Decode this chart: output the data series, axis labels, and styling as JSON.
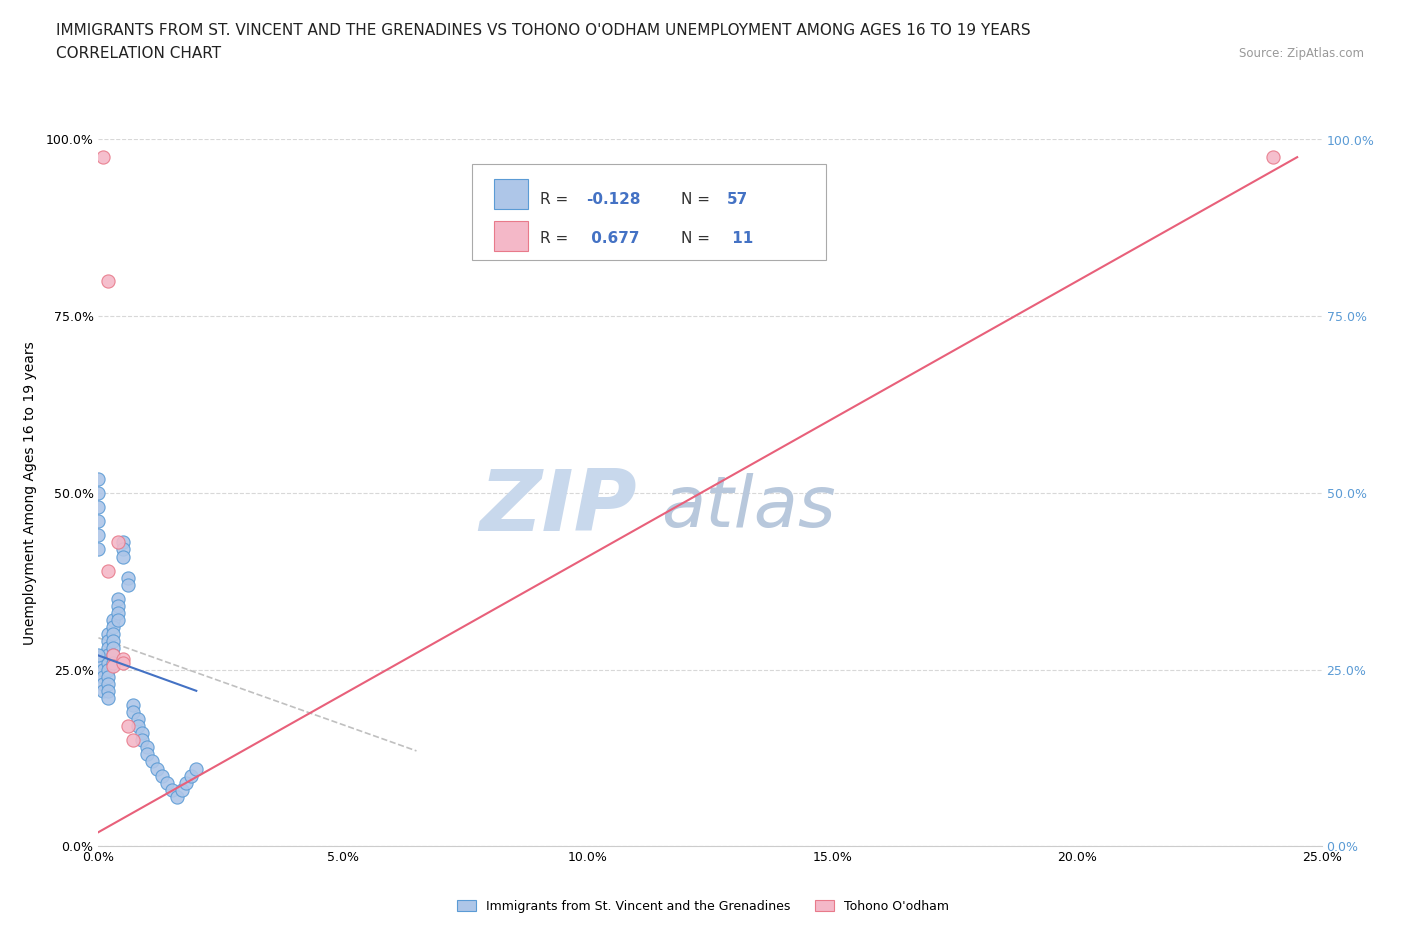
{
  "title_line1": "IMMIGRANTS FROM ST. VINCENT AND THE GRENADINES VS TOHONO O'ODHAM UNEMPLOYMENT AMONG AGES 16 TO 19 YEARS",
  "title_line2": "CORRELATION CHART",
  "source_text": "Source: ZipAtlas.com",
  "ylabel": "Unemployment Among Ages 16 to 19 years",
  "xlim": [
    0.0,
    0.25
  ],
  "ylim": [
    0.0,
    1.0
  ],
  "xticks": [
    0.0,
    0.05,
    0.1,
    0.15,
    0.2,
    0.25
  ],
  "yticks": [
    0.0,
    0.25,
    0.5,
    0.75,
    1.0
  ],
  "xticklabels": [
    "0.0%",
    "5.0%",
    "10.0%",
    "15.0%",
    "20.0%",
    "25.0%"
  ],
  "yticklabels": [
    "0.0%",
    "25.0%",
    "50.0%",
    "75.0%",
    "100.0%"
  ],
  "right_yticklabels": [
    "0.0%",
    "25.0%",
    "50.0%",
    "75.0%",
    "100.0%"
  ],
  "blue_scatter_x": [
    0.001,
    0.001,
    0.001,
    0.001,
    0.001,
    0.001,
    0.002,
    0.002,
    0.002,
    0.002,
    0.002,
    0.002,
    0.002,
    0.002,
    0.002,
    0.002,
    0.003,
    0.003,
    0.003,
    0.003,
    0.003,
    0.003,
    0.003,
    0.004,
    0.004,
    0.004,
    0.004,
    0.005,
    0.005,
    0.005,
    0.006,
    0.006,
    0.007,
    0.007,
    0.008,
    0.008,
    0.009,
    0.009,
    0.01,
    0.01,
    0.011,
    0.012,
    0.013,
    0.014,
    0.015,
    0.016,
    0.017,
    0.018,
    0.019,
    0.02,
    0.0,
    0.0,
    0.0,
    0.0,
    0.0,
    0.0,
    0.0
  ],
  "blue_scatter_y": [
    0.27,
    0.26,
    0.25,
    0.24,
    0.23,
    0.22,
    0.3,
    0.29,
    0.28,
    0.27,
    0.26,
    0.25,
    0.24,
    0.23,
    0.22,
    0.21,
    0.32,
    0.31,
    0.3,
    0.29,
    0.28,
    0.27,
    0.26,
    0.35,
    0.34,
    0.33,
    0.32,
    0.43,
    0.42,
    0.41,
    0.38,
    0.37,
    0.2,
    0.19,
    0.18,
    0.17,
    0.16,
    0.15,
    0.14,
    0.13,
    0.12,
    0.11,
    0.1,
    0.09,
    0.08,
    0.07,
    0.08,
    0.09,
    0.1,
    0.11,
    0.52,
    0.5,
    0.48,
    0.46,
    0.44,
    0.42,
    0.27
  ],
  "pink_scatter_x": [
    0.001,
    0.002,
    0.002,
    0.003,
    0.003,
    0.004,
    0.005,
    0.005,
    0.006,
    0.007,
    0.24
  ],
  "pink_scatter_y": [
    0.975,
    0.8,
    0.39,
    0.27,
    0.255,
    0.43,
    0.265,
    0.26,
    0.17,
    0.15,
    0.975
  ],
  "blue_line_x": [
    0.0,
    0.02
  ],
  "blue_line_y": [
    0.27,
    0.22
  ],
  "pink_line_x": [
    0.0,
    0.245
  ],
  "pink_line_y": [
    0.02,
    0.975
  ],
  "dash_line_x": [
    0.0,
    0.065
  ],
  "dash_line_y": [
    0.295,
    0.135
  ],
  "blue_color": "#aec6e8",
  "blue_edge_color": "#5b9bd5",
  "pink_color": "#f4b8c8",
  "pink_edge_color": "#e87a8a",
  "blue_line_color": "#4472c4",
  "pink_line_color": "#e8607a",
  "dash_line_color": "#c0c0c0",
  "watermark_zip_color": "#c8d8ec",
  "watermark_atlas_color": "#b8c8dc",
  "legend_label_blue": "Immigrants from St. Vincent and the Grenadines",
  "legend_label_pink": "Tohono O'odham",
  "legend_R_blue": "R = -0.128",
  "legend_R_pink": "R =  0.677",
  "legend_N_blue": "N = 57",
  "legend_N_pink": "N =  11",
  "right_tick_color": "#5b9bd5",
  "title_fontsize": 11,
  "axis_label_fontsize": 10,
  "tick_fontsize": 9
}
